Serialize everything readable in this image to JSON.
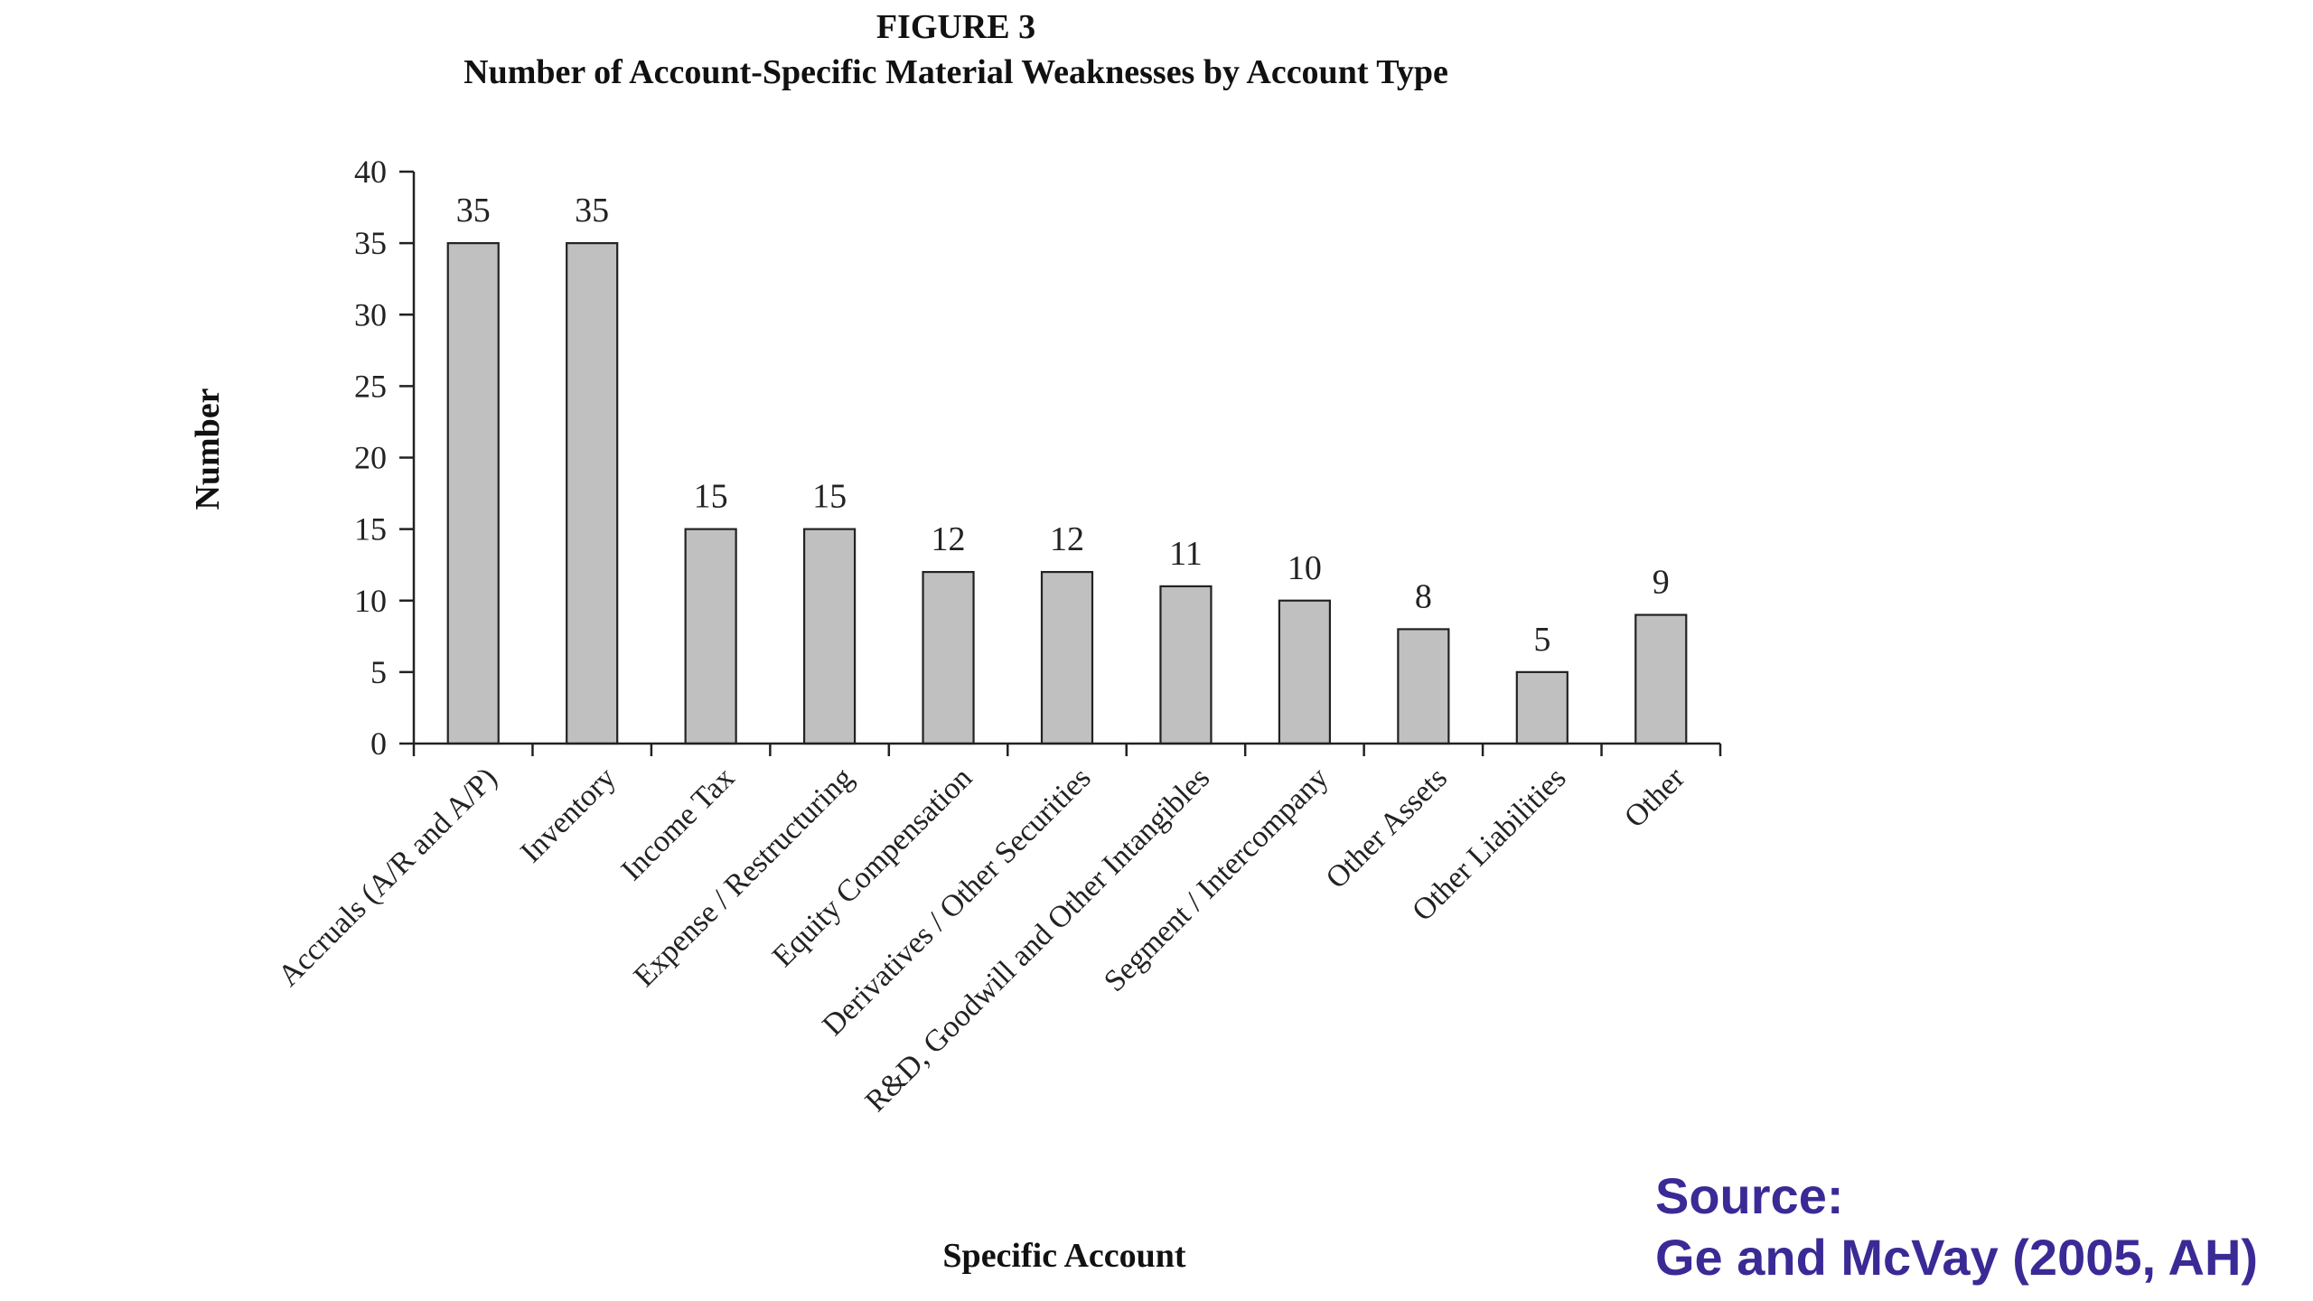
{
  "colors": {
    "bar_fill": "#c0c0c0",
    "bar_stroke": "#222222",
    "source_text": "#3a2a96"
  },
  "figure": {
    "label": "FIGURE 3",
    "title": "Number of Account-Specific Material Weaknesses by Account Type"
  },
  "chart_data": {
    "type": "bar",
    "title": "Number of Account-Specific Material Weaknesses by Account Type",
    "xlabel": "Specific Account",
    "ylabel": "Number",
    "ylim": [
      0,
      40
    ],
    "yticks": [
      0,
      5,
      10,
      15,
      20,
      25,
      30,
      35,
      40
    ],
    "grid": false,
    "legend": "none",
    "categories": [
      "Accruals (A/R and A/P)",
      "Inventory",
      "Income Tax",
      "Expense / Restructuring",
      "Equity Compensation",
      "Derivatives / Other Securities",
      "R&D, Goodwill and Other Intangibles",
      "Segment / Intercompany",
      "Other Assets",
      "Other Liabilities",
      "Other"
    ],
    "values": [
      35,
      35,
      15,
      15,
      12,
      12,
      11,
      10,
      8,
      5,
      9
    ]
  },
  "source": {
    "line1": "Source:",
    "line2": "Ge and McVay (2005, AH)"
  }
}
